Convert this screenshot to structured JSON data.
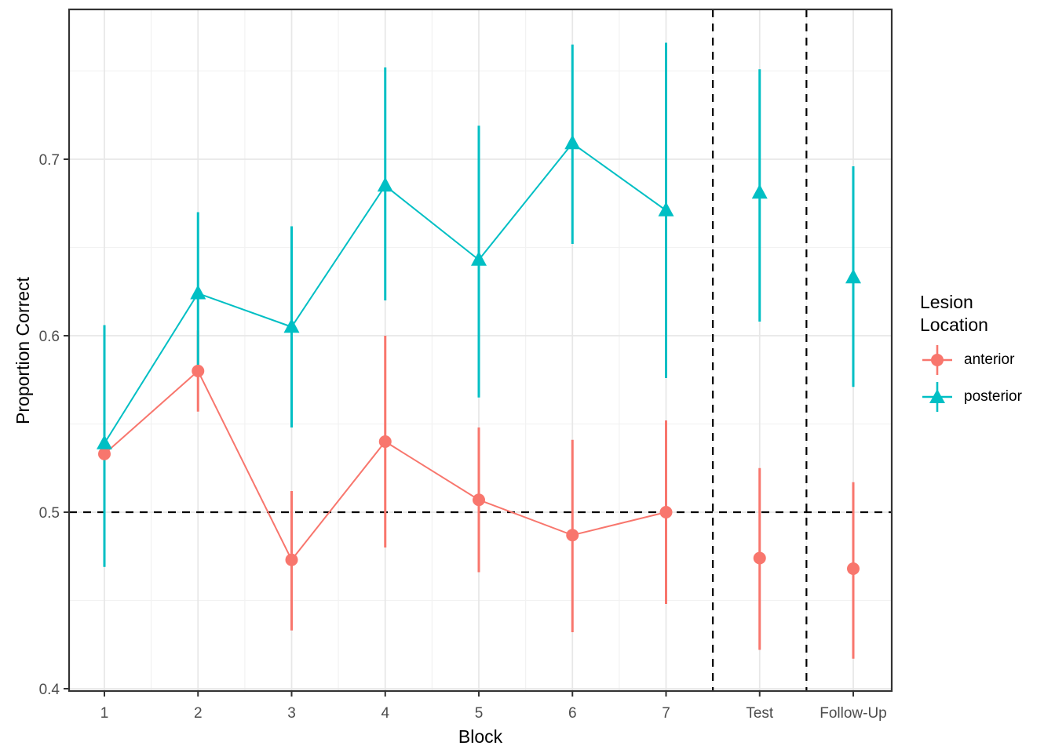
{
  "chart_data": {
    "type": "line",
    "subtype": "pointrange-with-errorbars",
    "title": "",
    "xlabel": "Block",
    "ylabel": "Proportion Correct",
    "categories": [
      "1",
      "2",
      "3",
      "4",
      "5",
      "6",
      "7",
      "Test",
      "Follow-Up"
    ],
    "connected_category_count": 7,
    "y_axis": {
      "tick_values": [
        0.4,
        0.5,
        0.6,
        0.7
      ],
      "tick_labels": [
        "0.4",
        "0.5",
        "0.6",
        "0.7"
      ],
      "minor_tick_values": [
        0.45,
        0.55,
        0.65,
        0.75
      ],
      "range": [
        0.399,
        0.785
      ]
    },
    "reference_lines": {
      "style": "dashed",
      "color": "#000000",
      "horizontal_values": [
        0.5
      ],
      "vertical_between": [
        "7 and Test",
        "Test and Follow-Up"
      ],
      "vertical_category_positions": [
        6.5,
        7.5
      ]
    },
    "legend": {
      "title": "Lesion Location",
      "position": "right"
    },
    "series": [
      {
        "name": "anterior",
        "color": "#F8766D",
        "marker": "circle",
        "values": [
          0.533,
          0.58,
          0.473,
          0.54,
          0.507,
          0.487,
          0.5,
          0.474,
          0.468
        ],
        "ci_low": [
          0.473,
          0.557,
          0.433,
          0.48,
          0.466,
          0.432,
          0.448,
          0.422,
          0.417
        ],
        "ci_high": [
          0.593,
          0.603,
          0.512,
          0.6,
          0.548,
          0.541,
          0.552,
          0.525,
          0.517
        ]
      },
      {
        "name": "posterior",
        "color": "#00BFC4",
        "marker": "triangle",
        "values": [
          0.539,
          0.624,
          0.605,
          0.685,
          0.643,
          0.709,
          0.671,
          0.681,
          0.633
        ],
        "ci_low": [
          0.469,
          0.583,
          0.548,
          0.62,
          0.565,
          0.652,
          0.576,
          0.608,
          0.571
        ],
        "ci_high": [
          0.606,
          0.67,
          0.662,
          0.752,
          0.719,
          0.765,
          0.766,
          0.751,
          0.696
        ]
      }
    ],
    "grid": {
      "major_color": "#E7E7E7",
      "minor_color": "#F2F2F2",
      "background": "#FFFFFF"
    },
    "panel_border_color": "#333333",
    "tick_label_color": "#4D4D4D"
  }
}
